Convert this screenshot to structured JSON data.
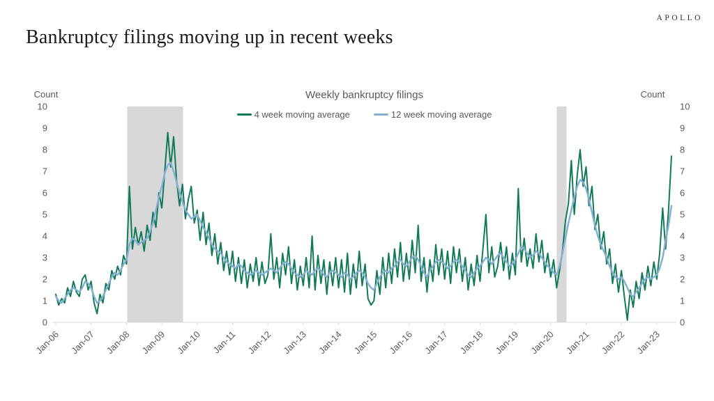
{
  "header": {
    "brand": "APOLLO",
    "title": "Bankruptcy filings moving up in recent weeks"
  },
  "colors": {
    "band": "#d8d8d8",
    "axis": "#d9d9d9",
    "chart_text": "#595959",
    "green_series": "#107a57",
    "blue_series": "#86afd3"
  },
  "chart_data": {
    "type": "line",
    "title": "Weekly bankruptcy filings",
    "y_axis_label_left": "Count",
    "y_axis_label_right": "Count",
    "ylim": [
      0,
      10
    ],
    "y_ticks": [
      0,
      1,
      2,
      3,
      4,
      5,
      6,
      7,
      8,
      9,
      10
    ],
    "x_tick_labels": [
      "Jan-06",
      "Jan-07",
      "Jan-08",
      "Jan-09",
      "Jan-10",
      "Jan-11",
      "Jan-12",
      "Jan-13",
      "Jan-14",
      "Jan-15",
      "Jan-16",
      "Jan-17",
      "Jan-18",
      "Jan-19",
      "Jan-20",
      "Jan-21",
      "Jan-22",
      "Jan-23"
    ],
    "x_start_year": 2006.0,
    "x_resolution": "monthly-estimates-of-weekly-series",
    "grid": false,
    "legend_position": "top-center",
    "recession_bands": [
      {
        "start": 2008.02,
        "end": 2009.6
      },
      {
        "start": 2020.17,
        "end": 2020.45
      }
    ],
    "series": [
      {
        "name": "4 week moving average",
        "color": "#107a57",
        "values": [
          1.3,
          0.8,
          1.1,
          0.9,
          1.6,
          1.2,
          1.9,
          1.4,
          1.2,
          2.0,
          2.2,
          1.5,
          1.9,
          0.9,
          0.4,
          1.3,
          0.9,
          1.8,
          1.5,
          2.4,
          2.0,
          2.6,
          2.2,
          3.1,
          2.7,
          6.3,
          3.4,
          4.4,
          3.6,
          4.2,
          3.3,
          4.5,
          3.8,
          5.1,
          4.4,
          6.0,
          5.3,
          7.0,
          8.8,
          7.2,
          8.6,
          6.6,
          5.4,
          6.4,
          4.8,
          5.7,
          6.3,
          4.6,
          5.2,
          3.8,
          5.1,
          3.6,
          4.6,
          3.1,
          4.1,
          2.7,
          3.7,
          2.4,
          3.3,
          2.2,
          3.3,
          1.9,
          3.0,
          1.8,
          2.9,
          1.6,
          2.7,
          1.9,
          3.0,
          1.7,
          2.8,
          1.8,
          2.2,
          4.1,
          2.0,
          3.0,
          1.6,
          3.2,
          2.2,
          3.5,
          1.8,
          2.9,
          1.5,
          2.6,
          1.7,
          3.0,
          1.6,
          4.0,
          1.5,
          3.1,
          1.8,
          2.9,
          1.3,
          2.8,
          1.7,
          3.0,
          1.6,
          2.9,
          1.4,
          3.2,
          1.3,
          2.7,
          1.6,
          3.3,
          1.7,
          2.7,
          1.1,
          0.8,
          1.0,
          2.4,
          1.3,
          3.0,
          1.6,
          3.2,
          1.8,
          3.4,
          2.1,
          3.7,
          1.9,
          3.2,
          2.0,
          3.8,
          2.3,
          4.5,
          1.9,
          3.0,
          1.4,
          2.9,
          1.9,
          3.6,
          2.2,
          3.4,
          2.0,
          3.3,
          1.8,
          3.5,
          2.3,
          3.4,
          1.9,
          3.0,
          1.5,
          2.7,
          1.7,
          3.1,
          1.9,
          3.4,
          5.0,
          2.3,
          3.5,
          2.1,
          2.6,
          3.7,
          2.4,
          3.5,
          2.0,
          3.2,
          2.2,
          6.2,
          2.8,
          3.9,
          2.6,
          3.4,
          2.5,
          4.1,
          2.8,
          3.8,
          2.3,
          3.2,
          2.1,
          2.9,
          1.6,
          2.4,
          3.3,
          4.7,
          5.5,
          7.5,
          5.0,
          6.8,
          8.0,
          6.3,
          7.2,
          5.4,
          6.3,
          4.3,
          5.0,
          3.4,
          4.2,
          2.7,
          3.4,
          1.8,
          2.7,
          1.4,
          2.4,
          1.2,
          0.1,
          1.5,
          0.7,
          1.9,
          1.1,
          2.3,
          1.5,
          2.6,
          1.7,
          2.8,
          2.0,
          3.2,
          5.3,
          3.4,
          5.2,
          7.7
        ]
      },
      {
        "name": "12 week moving average",
        "color": "#86afd3",
        "values": [
          1.2,
          1.0,
          0.9,
          1.1,
          1.3,
          1.5,
          1.6,
          1.5,
          1.4,
          1.6,
          1.9,
          1.8,
          1.6,
          1.2,
          0.9,
          1.0,
          1.2,
          1.5,
          1.8,
          2.1,
          2.3,
          2.2,
          2.4,
          2.7,
          2.9,
          3.6,
          3.9,
          3.8,
          3.6,
          3.7,
          3.8,
          3.9,
          4.2,
          4.6,
          5.2,
          5.8,
          6.3,
          6.9,
          7.3,
          7.4,
          7.0,
          6.5,
          6.0,
          5.6,
          5.2,
          5.0,
          4.8,
          4.9,
          5.0,
          4.7,
          4.4,
          4.2,
          3.9,
          3.6,
          3.4,
          3.3,
          3.2,
          3.0,
          2.8,
          2.7,
          2.6,
          2.5,
          2.7,
          2.6,
          2.4,
          2.3,
          2.2,
          2.3,
          2.4,
          2.3,
          2.2,
          2.3,
          2.4,
          2.5,
          2.4,
          2.3,
          2.5,
          2.7,
          2.8,
          2.7,
          2.5,
          2.3,
          2.2,
          2.1,
          2.2,
          2.4,
          2.3,
          2.2,
          2.4,
          2.5,
          2.4,
          2.2,
          2.1,
          2.3,
          2.4,
          2.3,
          2.2,
          2.1,
          2.3,
          2.2,
          2.0,
          2.1,
          2.3,
          2.4,
          2.3,
          2.1,
          1.8,
          1.6,
          1.5,
          1.8,
          2.1,
          2.3,
          2.4,
          2.3,
          2.5,
          2.6,
          2.8,
          2.9,
          2.7,
          2.6,
          2.8,
          3.0,
          3.1,
          2.9,
          2.6,
          2.3,
          2.1,
          2.4,
          2.6,
          2.8,
          2.9,
          2.8,
          2.7,
          2.5,
          2.6,
          2.8,
          2.9,
          2.8,
          2.6,
          2.4,
          2.2,
          2.1,
          2.3,
          2.5,
          2.6,
          2.8,
          3.0,
          2.9,
          2.7,
          2.9,
          3.1,
          3.2,
          3.0,
          2.8,
          2.6,
          2.7,
          2.9,
          3.2,
          3.5,
          3.4,
          3.2,
          3.0,
          3.1,
          3.3,
          3.2,
          3.0,
          2.8,
          2.6,
          2.5,
          2.3,
          2.2,
          2.6,
          3.2,
          3.9,
          4.6,
          5.2,
          5.8,
          6.3,
          6.6,
          6.5,
          6.2,
          5.7,
          5.1,
          4.5,
          4.0,
          3.6,
          3.3,
          3.0,
          2.6,
          2.3,
          2.1,
          2.0,
          2.1,
          1.9,
          1.6,
          1.3,
          1.2,
          1.4,
          1.6,
          1.8,
          2.0,
          2.1,
          2.0,
          2.1,
          2.2,
          2.5,
          3.0,
          3.8,
          4.5,
          5.4
        ]
      }
    ]
  }
}
